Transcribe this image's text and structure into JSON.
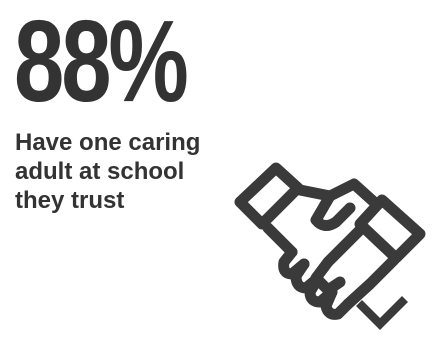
{
  "stat": {
    "value": "88%"
  },
  "caption": {
    "line1": "Have one caring",
    "line2": "adult at school",
    "line3": "they trust"
  },
  "colors": {
    "text": "#333333",
    "background": "#ffffff"
  },
  "icon": "handshake-icon"
}
